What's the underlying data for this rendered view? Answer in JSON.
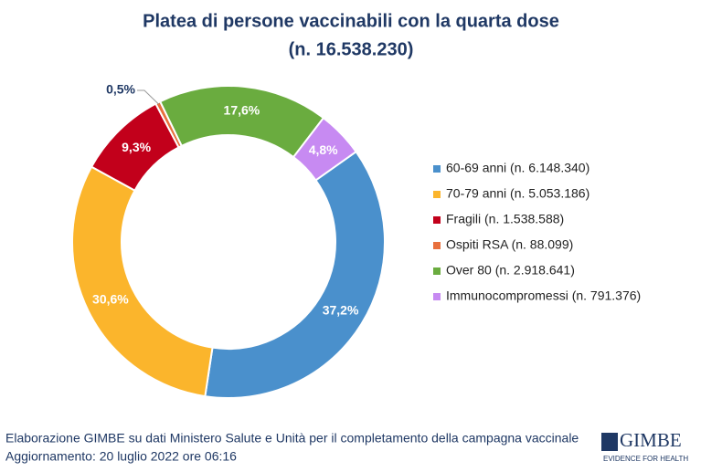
{
  "chart_data": {
    "type": "donut",
    "title": "Platea di persone vaccinabili con la quarta dose",
    "subtitle": "(n. 16.538.230)",
    "categories": [
      "60-69 anni (n. 6.148.340)",
      "70-79 anni (n. 5.053.186)",
      "Fragili (n. 1.538.588)",
      "Ospiti RSA (n. 88.099)",
      "Over 80 (n. 2.918.641)",
      "Immunocompromessi (n. 791.376)"
    ],
    "values": [
      37.2,
      30.6,
      9.3,
      0.5,
      17.6,
      4.8
    ],
    "value_labels": [
      "37,2%",
      "30,6%",
      "9,3%",
      "0,5%",
      "17,6%",
      "4,8%"
    ],
    "colors": [
      "#4a90cc",
      "#fbb52c",
      "#c2001b",
      "#e8703d",
      "#6aac3f",
      "#c78af2"
    ],
    "legend": "right"
  },
  "footer": {
    "source": "Elaborazione GIMBE su dati Ministero Salute e Unità per il completamento della campagna vaccinale",
    "updated": "Aggiornamento: 20 luglio 2022 ore 06:16"
  },
  "logo": {
    "name": "GIMBE",
    "tagline": "EVIDENCE FOR HEALTH"
  }
}
